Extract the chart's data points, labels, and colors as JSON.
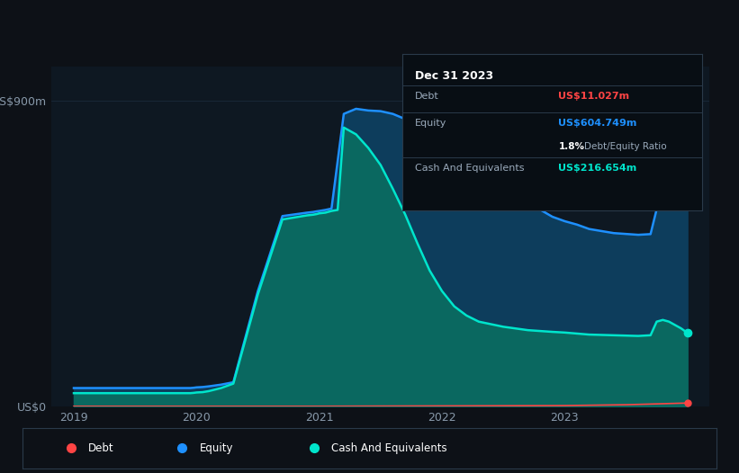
{
  "background_color": "#0d1117",
  "plot_bg_color": "#0e1822",
  "grid_color": "#1a2a3a",
  "ylabel": "US$900m",
  "y0label": "US$0",
  "x_ticks": [
    2019,
    2020,
    2021,
    2022,
    2023
  ],
  "ylim": [
    0,
    1000
  ],
  "equity_color": "#1e90ff",
  "cash_color": "#00e5cc",
  "debt_color": "#ff4444",
  "fill_color_equity": "#0d3d5c",
  "fill_color_cash": "#0a6860",
  "tooltip_bg": "#080e14",
  "tooltip_title": "Dec 31 2023",
  "tooltip_debt_label": "Debt",
  "tooltip_debt_value": "US$11.027m",
  "tooltip_equity_label": "Equity",
  "tooltip_equity_value": "US$604.749m",
  "tooltip_ratio_value": "1.8%",
  "tooltip_ratio_label": "Debt/Equity Ratio",
  "tooltip_cash_label": "Cash And Equivalents",
  "tooltip_cash_value": "US$216.654m",
  "legend_debt": "Debt",
  "legend_equity": "Equity",
  "legend_cash": "Cash And Equivalents",
  "equity_x": [
    2019.0,
    2019.05,
    2019.1,
    2019.2,
    2019.3,
    2019.5,
    2019.7,
    2019.9,
    2019.95,
    2019.98,
    2020.0,
    2020.05,
    2020.1,
    2020.2,
    2020.3,
    2020.5,
    2020.7,
    2020.9,
    2020.95,
    2020.98,
    2021.0,
    2021.05,
    2021.1,
    2021.2,
    2021.3,
    2021.4,
    2021.5,
    2021.6,
    2021.7,
    2021.8,
    2021.9,
    2022.0,
    2022.1,
    2022.2,
    2022.3,
    2022.5,
    2022.7,
    2022.9,
    2023.0,
    2023.1,
    2023.2,
    2023.4,
    2023.6,
    2023.7,
    2023.75,
    2023.8,
    2023.85,
    2023.9,
    2023.95,
    2024.0
  ],
  "equity_y": [
    55,
    55,
    55,
    55,
    55,
    55,
    55,
    55,
    55,
    56,
    57,
    58,
    60,
    65,
    72,
    340,
    560,
    570,
    572,
    574,
    575,
    578,
    582,
    860,
    875,
    870,
    868,
    860,
    845,
    830,
    810,
    795,
    760,
    730,
    700,
    645,
    600,
    558,
    545,
    535,
    522,
    510,
    505,
    507,
    580,
    600,
    605,
    605,
    604,
    605
  ],
  "cash_x": [
    2019.0,
    2019.05,
    2019.1,
    2019.2,
    2019.3,
    2019.5,
    2019.7,
    2019.9,
    2019.95,
    2019.98,
    2020.0,
    2020.05,
    2020.1,
    2020.2,
    2020.3,
    2020.5,
    2020.7,
    2020.9,
    2020.95,
    2020.98,
    2021.0,
    2021.05,
    2021.1,
    2021.15,
    2021.2,
    2021.3,
    2021.4,
    2021.5,
    2021.6,
    2021.7,
    2021.8,
    2021.9,
    2022.0,
    2022.1,
    2022.2,
    2022.3,
    2022.5,
    2022.7,
    2022.9,
    2023.0,
    2023.1,
    2023.2,
    2023.4,
    2023.6,
    2023.7,
    2023.75,
    2023.8,
    2023.85,
    2023.9,
    2023.95,
    2024.0
  ],
  "cash_y": [
    40,
    40,
    40,
    40,
    40,
    40,
    40,
    40,
    40,
    41,
    42,
    43,
    46,
    55,
    68,
    330,
    550,
    562,
    564,
    566,
    568,
    570,
    575,
    578,
    820,
    800,
    760,
    710,
    640,
    565,
    480,
    400,
    340,
    295,
    268,
    250,
    235,
    225,
    220,
    218,
    215,
    212,
    210,
    208,
    210,
    250,
    255,
    250,
    240,
    230,
    217
  ],
  "debt_x": [
    2019.0,
    2019.5,
    2020.0,
    2020.5,
    2021.0,
    2021.5,
    2022.0,
    2022.5,
    2023.0,
    2023.5,
    2024.0
  ],
  "debt_y": [
    1.5,
    1.5,
    1.5,
    1.5,
    1.5,
    2.0,
    2.5,
    3.0,
    3.5,
    6.0,
    11.0
  ]
}
